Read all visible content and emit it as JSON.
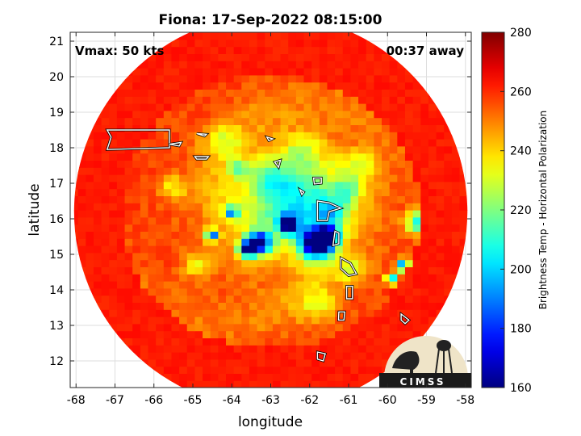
{
  "chart_data": {
    "type": "heatmap",
    "title": "Fiona: 17-Sep-2022 08:15:00",
    "xlabel": "longitude",
    "ylabel": "latitude",
    "xlim": [
      -68.15,
      -57.85
    ],
    "ylim": [
      11.25,
      21.25
    ],
    "xticks": [
      -68,
      -67,
      -66,
      -65,
      -64,
      -63,
      -62,
      -61,
      -60,
      -59,
      -58
    ],
    "yticks": [
      12,
      13,
      14,
      15,
      16,
      17,
      18,
      19,
      20,
      21
    ],
    "grid": true,
    "annotations": {
      "vmax": "Vmax: 50 kts",
      "time_away": "00:37 away"
    },
    "colorbar": {
      "label": "Brightness Temp - Horizontal Polarization",
      "range": [
        160,
        280
      ],
      "ticks": [
        160,
        180,
        200,
        220,
        240,
        260,
        280
      ],
      "colormap": "jet"
    },
    "swath": {
      "center_lon": -63.0,
      "center_lat": 16.2,
      "radius_deg": 5.05,
      "background_tb": 258
    },
    "features": [
      {
        "lon": -62.2,
        "lat": 16.6,
        "sigma": 0.85,
        "tb": 226
      },
      {
        "lon": -62.6,
        "lat": 16.3,
        "sigma": 1.5,
        "tb": 240
      },
      {
        "lon": -61.85,
        "lat": 15.3,
        "sigma": 0.28,
        "tb": 168
      },
      {
        "lon": -61.55,
        "lat": 15.5,
        "sigma": 0.2,
        "tb": 172
      },
      {
        "lon": -62.55,
        "lat": 15.85,
        "sigma": 0.18,
        "tb": 170
      },
      {
        "lon": -63.3,
        "lat": 15.35,
        "sigma": 0.22,
        "tb": 172
      },
      {
        "lon": -63.6,
        "lat": 15.15,
        "sigma": 0.16,
        "tb": 180
      },
      {
        "lon": -64.5,
        "lat": 15.55,
        "sigma": 0.12,
        "tb": 188
      },
      {
        "lon": -64.0,
        "lat": 16.2,
        "sigma": 0.12,
        "tb": 205
      },
      {
        "lon": -63.0,
        "lat": 17.1,
        "sigma": 0.35,
        "tb": 236
      },
      {
        "lon": -61.4,
        "lat": 16.2,
        "sigma": 0.3,
        "tb": 232
      },
      {
        "lon": -59.2,
        "lat": 15.9,
        "sigma": 0.22,
        "tb": 205
      },
      {
        "lon": -59.6,
        "lat": 14.7,
        "sigma": 0.12,
        "tb": 190
      },
      {
        "lon": -59.9,
        "lat": 14.3,
        "sigma": 0.1,
        "tb": 192
      },
      {
        "lon": -60.9,
        "lat": 14.6,
        "sigma": 0.3,
        "tb": 238
      },
      {
        "lon": -61.8,
        "lat": 13.6,
        "sigma": 0.35,
        "tb": 240
      },
      {
        "lon": -64.2,
        "lat": 18.2,
        "sigma": 0.35,
        "tb": 240
      },
      {
        "lon": -65.5,
        "lat": 16.9,
        "sigma": 0.25,
        "tb": 238
      },
      {
        "lon": -64.9,
        "lat": 14.7,
        "sigma": 0.25,
        "tb": 238
      },
      {
        "lon": -62.2,
        "lat": 18.0,
        "sigma": 0.3,
        "tb": 242
      },
      {
        "lon": -60.6,
        "lat": 17.5,
        "sigma": 0.35,
        "tb": 240
      },
      {
        "lon": -63.8,
        "lat": 17.4,
        "sigma": 0.2,
        "tb": 232
      },
      {
        "lon": -61.0,
        "lat": 16.8,
        "sigma": 0.25,
        "tb": 235
      }
    ]
  },
  "logo": {
    "text": "CIMSS"
  }
}
